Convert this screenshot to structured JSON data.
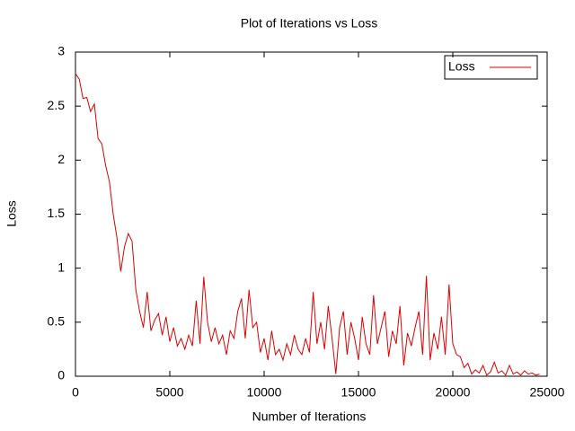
{
  "chart_data": {
    "type": "line",
    "title": "Plot of Iterations vs Loss",
    "x_label": "Number of Iterations",
    "y_label": "Loss",
    "x": [
      0,
      200,
      400,
      600,
      800,
      1000,
      1200,
      1400,
      1600,
      1800,
      2000,
      2200,
      2400,
      2600,
      2800,
      3000,
      3200,
      3400,
      3600,
      3800,
      4000,
      4200,
      4400,
      4600,
      4800,
      5000,
      5200,
      5400,
      5600,
      5800,
      6000,
      6200,
      6400,
      6600,
      6800,
      7000,
      7200,
      7400,
      7600,
      7800,
      8000,
      8200,
      8400,
      8600,
      8800,
      9000,
      9200,
      9400,
      9600,
      9800,
      10000,
      10200,
      10400,
      10600,
      10800,
      11000,
      11200,
      11400,
      11600,
      11800,
      12000,
      12200,
      12400,
      12600,
      12800,
      13000,
      13200,
      13400,
      13600,
      13800,
      14000,
      14200,
      14400,
      14600,
      14800,
      15000,
      15200,
      15400,
      15600,
      15800,
      16000,
      16200,
      16400,
      16600,
      16800,
      17000,
      17200,
      17400,
      17600,
      17800,
      18000,
      18200,
      18400,
      18600,
      18800,
      19000,
      19200,
      19400,
      19600,
      19800,
      20000,
      20200,
      20400,
      20600,
      20800,
      21000,
      21200,
      21400,
      21600,
      21800,
      22000,
      22200,
      22400,
      22600,
      22800,
      23000,
      23200,
      23400,
      23600,
      23800,
      24000,
      24200,
      24400,
      24600
    ],
    "series": [
      {
        "name": "Loss",
        "color": "#e00000",
        "values": [
          2.8,
          2.75,
          2.57,
          2.58,
          2.45,
          2.52,
          2.2,
          2.15,
          1.95,
          1.8,
          1.5,
          1.28,
          0.97,
          1.2,
          1.32,
          1.25,
          0.8,
          0.6,
          0.45,
          0.78,
          0.42,
          0.52,
          0.58,
          0.38,
          0.55,
          0.32,
          0.45,
          0.28,
          0.35,
          0.25,
          0.38,
          0.28,
          0.7,
          0.3,
          0.92,
          0.5,
          0.32,
          0.45,
          0.3,
          0.38,
          0.2,
          0.42,
          0.35,
          0.6,
          0.72,
          0.35,
          0.8,
          0.45,
          0.5,
          0.22,
          0.35,
          0.15,
          0.42,
          0.2,
          0.25,
          0.15,
          0.3,
          0.2,
          0.38,
          0.25,
          0.2,
          0.35,
          0.22,
          0.78,
          0.3,
          0.5,
          0.25,
          0.65,
          0.35,
          0.02,
          0.45,
          0.6,
          0.2,
          0.5,
          0.35,
          0.15,
          0.55,
          0.3,
          0.2,
          0.75,
          0.3,
          0.45,
          0.6,
          0.18,
          0.42,
          0.3,
          0.65,
          0.1,
          0.4,
          0.28,
          0.45,
          0.6,
          0.2,
          0.93,
          0.15,
          0.4,
          0.25,
          0.55,
          0.2,
          0.85,
          0.3,
          0.2,
          0.18,
          0.08,
          0.12,
          0.02,
          0.06,
          0.03,
          0.1,
          0.01,
          0.04,
          0.13,
          0.03,
          0.05,
          0.01,
          0.1,
          0.02,
          0.04,
          0.01,
          0.05,
          0.02,
          0.03,
          0.01,
          0.02
        ]
      }
    ],
    "xlim": [
      0,
      25000
    ],
    "xticks": [
      0,
      5000,
      10000,
      15000,
      20000,
      25000
    ],
    "ylim": [
      0,
      3
    ],
    "yticks": [
      0,
      0.5,
      1,
      1.5,
      2,
      2.5,
      3
    ],
    "grid": false,
    "legend": "upper right"
  }
}
